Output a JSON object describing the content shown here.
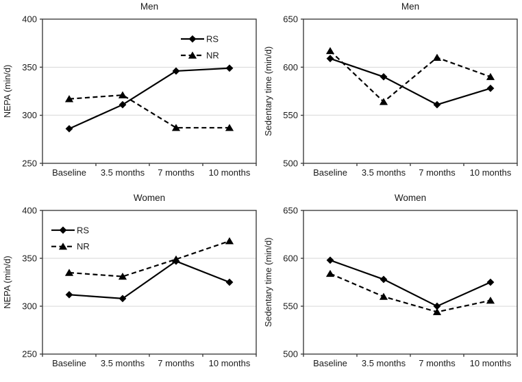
{
  "colors": {
    "series_line": "#000000",
    "marker_fill": "#000000",
    "gridline": "#d6d6d6",
    "axis_frame": "#3f3f3f",
    "tick": "#3f3f3f",
    "text": "#1a1a1a",
    "background": "#ffffff"
  },
  "chart_data": [
    {
      "type": "line",
      "title": "Men",
      "ylabel": "NEPA (min/d)",
      "ylim": [
        250,
        400
      ],
      "yticks": [
        250,
        300,
        350,
        400
      ],
      "categories": [
        "Baseline",
        "3.5 months",
        "7 months",
        "10 months"
      ],
      "series": [
        {
          "name": "RS",
          "line": "solid",
          "marker": "diamond",
          "values": [
            286,
            311,
            346,
            349
          ]
        },
        {
          "name": "NR",
          "line": "dashed",
          "marker": "triangle",
          "values": [
            317,
            321,
            287,
            287
          ]
        }
      ],
      "grid": "horizontal-interior",
      "legend": {
        "show": true,
        "position": "top-right"
      }
    },
    {
      "type": "line",
      "title": "Men",
      "ylabel": "Sedentary time (min/d)",
      "ylim": [
        500,
        650
      ],
      "yticks": [
        500,
        550,
        600,
        650
      ],
      "categories": [
        "Baseline",
        "3.5 months",
        "7 months",
        "10 months"
      ],
      "series": [
        {
          "name": "RS",
          "line": "solid",
          "marker": "diamond",
          "values": [
            609,
            590,
            561,
            578
          ]
        },
        {
          "name": "NR",
          "line": "dashed",
          "marker": "triangle",
          "values": [
            617,
            564,
            610,
            590
          ]
        }
      ],
      "grid": "horizontal-interior",
      "legend": {
        "show": false,
        "position": ""
      }
    },
    {
      "type": "line",
      "title": "Women",
      "ylabel": "NEPA (min/d)",
      "ylim": [
        250,
        400
      ],
      "yticks": [
        250,
        300,
        350,
        400
      ],
      "categories": [
        "Baseline",
        "3.5 months",
        "7 months",
        "10 months"
      ],
      "series": [
        {
          "name": "RS",
          "line": "solid",
          "marker": "diamond",
          "values": [
            312,
            308,
            347,
            325
          ]
        },
        {
          "name": "NR",
          "line": "dashed",
          "marker": "triangle",
          "values": [
            335,
            331,
            349,
            368
          ]
        }
      ],
      "grid": "horizontal-interior",
      "legend": {
        "show": true,
        "position": "top-left"
      }
    },
    {
      "type": "line",
      "title": "Women",
      "ylabel": "Sedentary time (min/d)",
      "ylim": [
        500,
        650
      ],
      "yticks": [
        500,
        550,
        600,
        650
      ],
      "categories": [
        "Baseline",
        "3.5 months",
        "7 months",
        "10 months"
      ],
      "series": [
        {
          "name": "RS",
          "line": "solid",
          "marker": "diamond",
          "values": [
            598,
            578,
            550,
            575
          ]
        },
        {
          "name": "NR",
          "line": "dashed",
          "marker": "triangle",
          "values": [
            584,
            560,
            544,
            556
          ]
        }
      ],
      "grid": "horizontal-interior",
      "legend": {
        "show": false,
        "position": ""
      }
    }
  ]
}
